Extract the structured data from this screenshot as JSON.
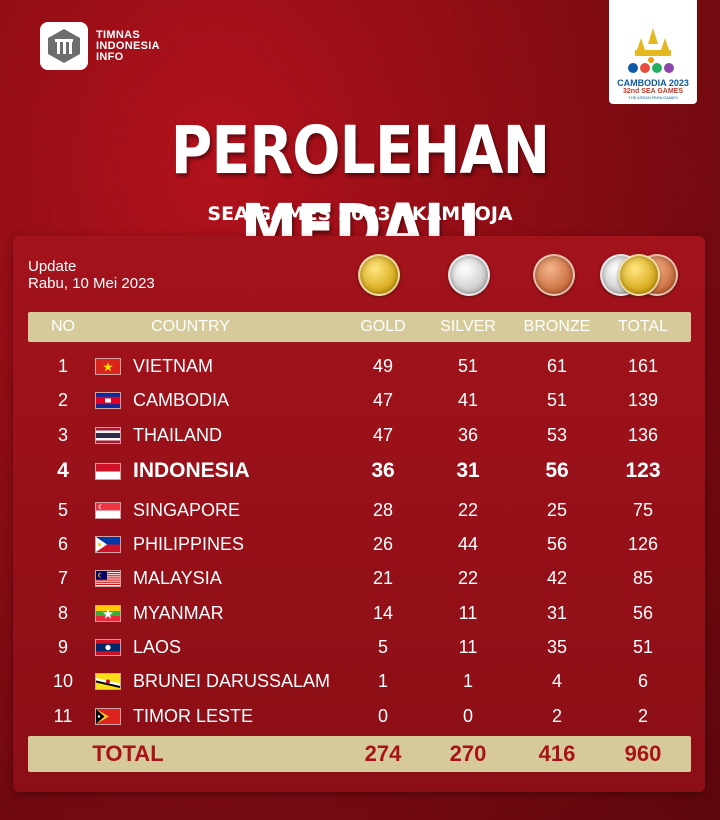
{
  "brand": {
    "line1": "TIMNAS",
    "line2": "INDONESIA",
    "line3": "INFO",
    "icon": "timnas-logo-icon"
  },
  "event_logo": {
    "line1": "CAMBODIA 2023",
    "line2": "32nd SEA GAMES",
    "line3": "THE ASEAN PARA GAMES"
  },
  "title": "PEROLEHAN MEDALI",
  "subtitle": "SEA GAMES 2023 - KAMBOJA",
  "update": {
    "label": "Update",
    "date": "Rabu, 10 Mei 2023"
  },
  "columns": {
    "no": "NO",
    "country": "COUNTRY",
    "gold": "GOLD",
    "silver": "SILVER",
    "bronze": "BRONZE",
    "total": "TOTAL"
  },
  "rows": [
    {
      "no": "1",
      "country": "VIETNAM",
      "flag": "flag-vietnam",
      "gold": "49",
      "silver": "51",
      "bronze": "61",
      "total": "161"
    },
    {
      "no": "2",
      "country": "CAMBODIA",
      "flag": "flag-cambodia",
      "gold": "47",
      "silver": "41",
      "bronze": "51",
      "total": "139"
    },
    {
      "no": "3",
      "country": "THAILAND",
      "flag": "flag-thailand",
      "gold": "47",
      "silver": "36",
      "bronze": "53",
      "total": "136"
    },
    {
      "no": "4",
      "country": "INDONESIA",
      "flag": "flag-indonesia",
      "gold": "36",
      "silver": "31",
      "bronze": "56",
      "total": "123",
      "highlight": true
    },
    {
      "no": "5",
      "country": "SINGAPORE",
      "flag": "flag-singapore",
      "gold": "28",
      "silver": "22",
      "bronze": "25",
      "total": "75"
    },
    {
      "no": "6",
      "country": "PHILIPPINES",
      "flag": "flag-philippines",
      "gold": "26",
      "silver": "44",
      "bronze": "56",
      "total": "126"
    },
    {
      "no": "7",
      "country": "MALAYSIA",
      "flag": "flag-malaysia",
      "gold": "21",
      "silver": "22",
      "bronze": "42",
      "total": "85"
    },
    {
      "no": "8",
      "country": "MYANMAR",
      "flag": "flag-myanmar",
      "gold": "14",
      "silver": "11",
      "bronze": "31",
      "total": "56"
    },
    {
      "no": "9",
      "country": "LAOS",
      "flag": "flag-laos",
      "gold": "5",
      "silver": "11",
      "bronze": "35",
      "total": "51"
    },
    {
      "no": "10",
      "country": "BRUNEI DARUSSALAM",
      "flag": "flag-brunei",
      "gold": "1",
      "silver": "1",
      "bronze": "4",
      "total": "6"
    },
    {
      "no": "11",
      "country": "TIMOR LESTE",
      "flag": "flag-timor-leste",
      "gold": "0",
      "silver": "0",
      "bronze": "2",
      "total": "2"
    }
  ],
  "totals": {
    "label": "TOTAL",
    "gold": "274",
    "silver": "270",
    "bronze": "416",
    "total": "960"
  },
  "colors": {
    "background": "#8a0c14",
    "panel": "#9c111a",
    "header_bar": "#d6c99a",
    "total_text": "#a8121b"
  }
}
